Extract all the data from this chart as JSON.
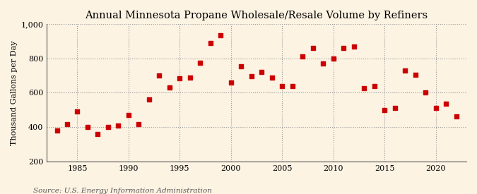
{
  "years": [
    1983,
    1984,
    1985,
    1986,
    1987,
    1988,
    1989,
    1990,
    1991,
    1992,
    1993,
    1994,
    1995,
    1996,
    1997,
    1998,
    1999,
    2000,
    2001,
    2002,
    2003,
    2004,
    2005,
    2006,
    2007,
    2008,
    2009,
    2010,
    2011,
    2012,
    2013,
    2014,
    2015,
    2016,
    2017,
    2018,
    2019,
    2020,
    2021,
    2022
  ],
  "values": [
    380,
    415,
    490,
    400,
    360,
    400,
    410,
    470,
    415,
    560,
    700,
    630,
    685,
    690,
    775,
    890,
    935,
    660,
    755,
    695,
    720,
    690,
    640,
    640,
    810,
    860,
    770,
    800,
    860,
    870,
    625,
    640,
    500,
    510,
    730,
    705,
    600,
    510,
    535,
    460
  ],
  "marker_color": "#cc0000",
  "bg_color": "#fdf3e3",
  "grid_color": "#999999",
  "title": "Annual Minnesota Propane Wholesale/Resale Volume by Refiners",
  "ylabel": "Thousand Gallons per Day",
  "source": "Source: U.S. Energy Information Administration",
  "ylim": [
    200,
    1000
  ],
  "yticks": [
    200,
    400,
    600,
    800,
    1000
  ],
  "ytick_labels": [
    "200",
    "400",
    "600",
    "800",
    "1,000"
  ],
  "xticks": [
    1985,
    1990,
    1995,
    2000,
    2005,
    2010,
    2015,
    2020
  ],
  "xlim": [
    1982,
    2023
  ],
  "title_fontsize": 10.5,
  "label_fontsize": 8,
  "tick_fontsize": 8,
  "source_fontsize": 7.5
}
